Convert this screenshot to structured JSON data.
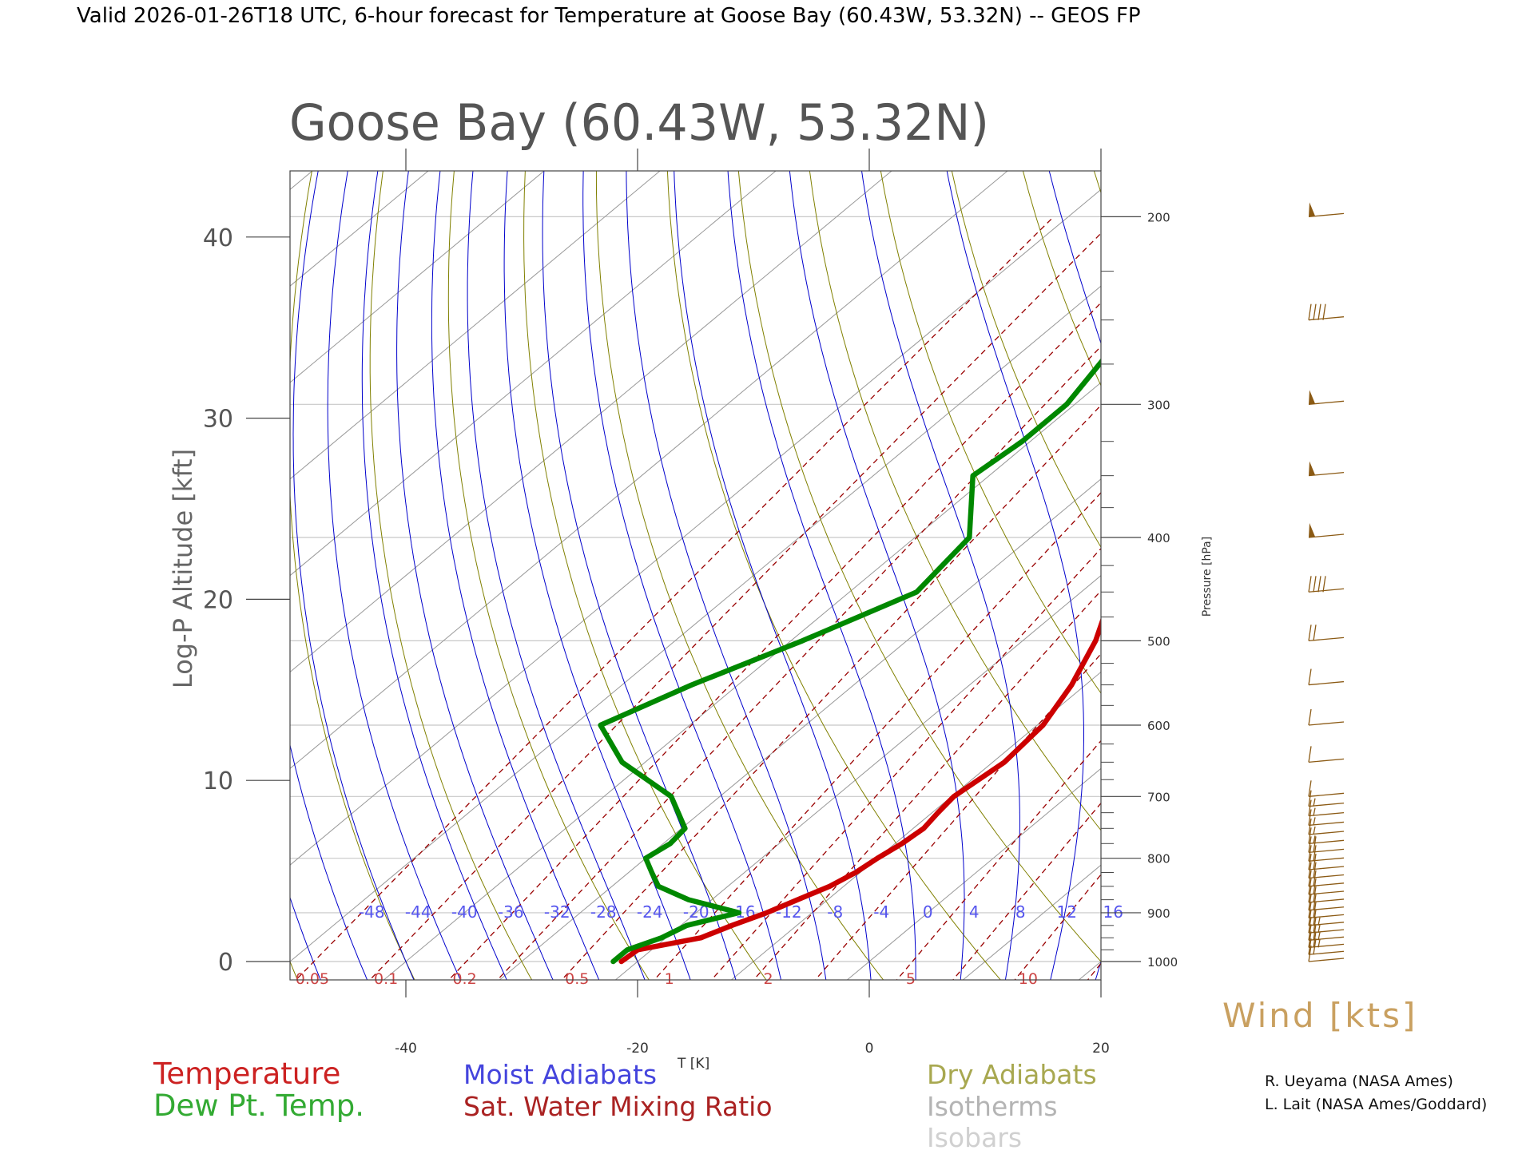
{
  "header": "Valid 2026-01-26T18 UTC, 6-hour forecast for Temperature at Goose Bay (60.43W, 53.32N) -- GEOS FP",
  "chart_data": {
    "type": "line",
    "title": "Goose Bay (60.43W, 53.32N)",
    "xlabel": "T [K]",
    "ylabel": "Log-P Altitude [kft]",
    "y2label": "Pressure [hPa]",
    "xlim": [
      -50,
      20
    ],
    "ylim": [
      -1,
      43
    ],
    "x_ticks": [
      -40,
      -20,
      0,
      20
    ],
    "y_ticks": [
      0,
      10,
      20,
      30,
      40
    ],
    "pressure_labeled": [
      1000,
      900,
      800,
      700,
      600,
      500,
      400,
      300,
      200
    ],
    "pressure_minor": [
      975,
      950,
      925,
      875,
      850,
      825,
      775,
      750,
      725,
      675,
      650,
      625,
      575,
      550,
      525,
      475,
      450,
      425,
      375,
      350,
      325,
      275,
      250,
      225,
      175,
      150
    ],
    "moist_adiabat_labels": [
      "-48",
      "-44",
      "-40",
      "-36",
      "-32",
      "-28",
      "-24",
      "-20",
      "-16",
      "-12",
      "-8",
      "-4",
      "0",
      "4",
      "8",
      "12",
      "16"
    ],
    "mixing_ratio_labels": [
      "0.05",
      "0.1",
      "0.2",
      "0.5",
      "1",
      "2",
      "5",
      "10"
    ],
    "series": [
      {
        "name": "Temperature",
        "color": "#cc0000",
        "points": [
          [
            1000,
            -21.4
          ],
          [
            975,
            -21.2
          ],
          [
            950,
            -17.0
          ],
          [
            925,
            -15.6
          ],
          [
            900,
            -13.9
          ],
          [
            875,
            -12.6
          ],
          [
            850,
            -11.2
          ],
          [
            825,
            -10.4
          ],
          [
            800,
            -10.0
          ],
          [
            775,
            -9.4
          ],
          [
            750,
            -9.1
          ],
          [
            725,
            -9.5
          ],
          [
            700,
            -9.8
          ],
          [
            650,
            -9.0
          ],
          [
            600,
            -9.5
          ],
          [
            550,
            -11.2
          ],
          [
            500,
            -13.7
          ],
          [
            450,
            -17.3
          ],
          [
            400,
            -20.6
          ],
          [
            350,
            -25.0
          ],
          [
            325,
            -28.0
          ],
          [
            300,
            -30.4
          ],
          [
            275,
            -33.4
          ],
          [
            250,
            -37.3
          ],
          [
            225,
            -41.3
          ],
          [
            200,
            -47.0
          ],
          [
            175,
            -51.0
          ],
          [
            150,
            -56.2
          ]
        ]
      },
      {
        "name": "Dew Pt. Temp.",
        "color": "#008800",
        "points": [
          [
            1000,
            -22.1
          ],
          [
            975,
            -22.1
          ],
          [
            950,
            -20.4
          ],
          [
            925,
            -19.5
          ],
          [
            900,
            -16.3
          ],
          [
            875,
            -22.0
          ],
          [
            850,
            -26.0
          ],
          [
            825,
            -28.0
          ],
          [
            800,
            -30.0
          ],
          [
            775,
            -29.4
          ],
          [
            750,
            -29.7
          ],
          [
            700,
            -34.2
          ],
          [
            650,
            -42.0
          ],
          [
            600,
            -47.7
          ],
          [
            550,
            -44.0
          ],
          [
            500,
            -39.0
          ],
          [
            450,
            -34.2
          ],
          [
            400,
            -35.3
          ],
          [
            350,
            -41.4
          ],
          [
            325,
            -40.7
          ],
          [
            300,
            -40.7
          ],
          [
            250,
            -43.5
          ],
          [
            225,
            -47.0
          ],
          [
            200,
            -55.0
          ],
          [
            175,
            -59.3
          ],
          [
            150,
            -64.0
          ]
        ]
      }
    ],
    "wind_barbs_kts": [
      {
        "p": 1000,
        "speed": 10
      },
      {
        "p": 985,
        "speed": 20
      },
      {
        "p": 970,
        "speed": 25
      },
      {
        "p": 955,
        "speed": 25
      },
      {
        "p": 940,
        "speed": 25
      },
      {
        "p": 925,
        "speed": 25
      },
      {
        "p": 910,
        "speed": 20
      },
      {
        "p": 895,
        "speed": 20
      },
      {
        "p": 880,
        "speed": 20
      },
      {
        "p": 865,
        "speed": 20
      },
      {
        "p": 850,
        "speed": 20
      },
      {
        "p": 835,
        "speed": 20
      },
      {
        "p": 820,
        "speed": 20
      },
      {
        "p": 805,
        "speed": 20
      },
      {
        "p": 790,
        "speed": 20
      },
      {
        "p": 775,
        "speed": 15
      },
      {
        "p": 760,
        "speed": 15
      },
      {
        "p": 745,
        "speed": 15
      },
      {
        "p": 730,
        "speed": 15
      },
      {
        "p": 715,
        "speed": 15
      },
      {
        "p": 700,
        "speed": 10
      },
      {
        "p": 650,
        "speed": 10
      },
      {
        "p": 600,
        "speed": 10
      },
      {
        "p": 550,
        "speed": 10
      },
      {
        "p": 500,
        "speed": 20
      },
      {
        "p": 450,
        "speed": 40
      },
      {
        "p": 400,
        "speed": 50
      },
      {
        "p": 350,
        "speed": 50
      },
      {
        "p": 300,
        "speed": 50
      },
      {
        "p": 250,
        "speed": 40
      },
      {
        "p": 200,
        "speed": 50
      }
    ]
  },
  "wind_label": "Wind [kts]",
  "legend": {
    "temperature": "Temperature",
    "dewpoint": "Dew Pt. Temp.",
    "moist": "Moist Adiabats",
    "mixing": "Sat. Water Mixing Ratio",
    "dry": "Dry Adiabats",
    "isotherms": "Isotherms",
    "isobars": "Isobars"
  },
  "credits": [
    "R. Ueyama (NASA Ames)",
    "L. Lait (NASA Ames/Goddard)"
  ],
  "colors": {
    "temperature": "#cc0000",
    "dewpoint": "#008800",
    "moist": "#0000cc",
    "mixing": "#990000",
    "dry": "#808000",
    "isotherm": "#999999",
    "isobar": "#c8c8c8",
    "wind": "#8b5a14"
  }
}
